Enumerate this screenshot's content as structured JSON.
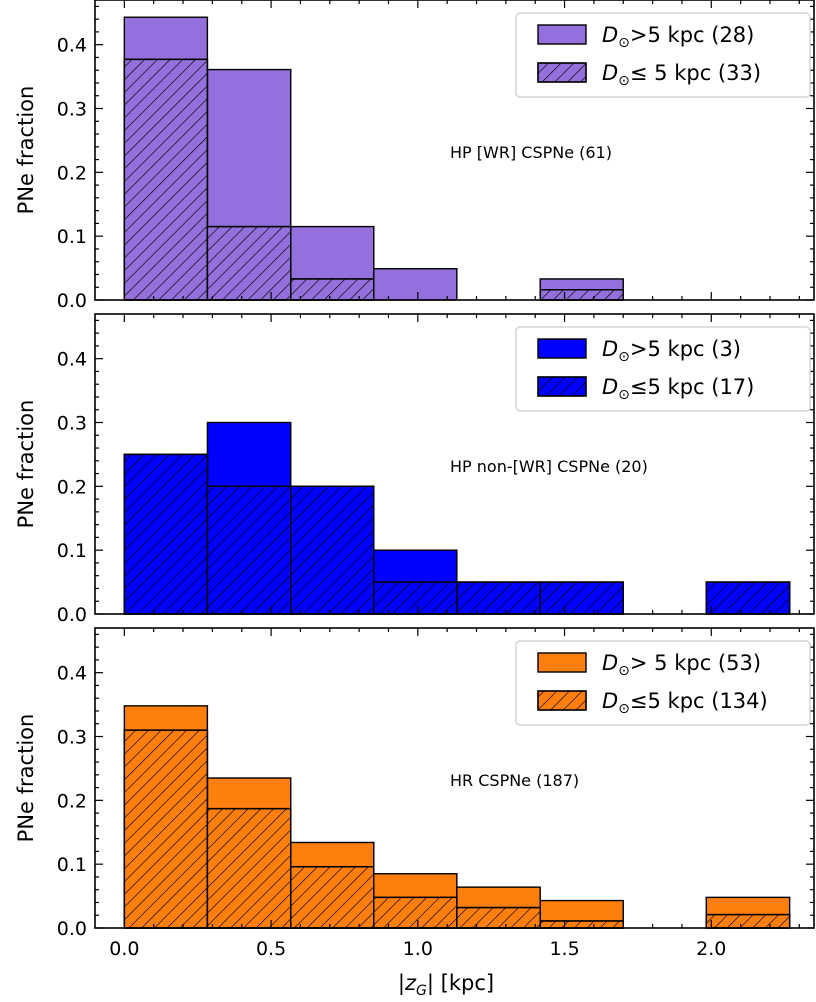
{
  "chart_data": [
    {
      "type": "bar",
      "panel": "top",
      "annotation": "HP [WR] CSPNe (61)",
      "ylabel": "PNe fraction",
      "xlabel": "",
      "ylim": [
        0,
        0.47
      ],
      "xlim": [
        -0.1,
        2.35
      ],
      "yticks": [
        "0.0",
        "0.1",
        "0.2",
        "0.3",
        "0.4"
      ],
      "bin_edges": [
        0.0,
        0.283,
        0.567,
        0.85,
        1.133,
        1.417,
        1.7,
        1.983,
        2.267
      ],
      "color": "#9370DB",
      "legend_position": "upper right",
      "series": [
        {
          "name": "D⊙>5 kpc (28)",
          "style": "solid",
          "values": [
            0.443,
            0.361,
            0.115,
            0.049,
            0.0,
            0.033,
            0.0,
            0.0
          ]
        },
        {
          "name": "D⊙≤ 5 kpc (33)",
          "style": "hatched",
          "values": [
            0.377,
            0.115,
            0.033,
            0.0,
            0.0,
            0.016,
            0.0,
            0.0
          ]
        }
      ]
    },
    {
      "type": "bar",
      "panel": "middle",
      "annotation": "HP non-[WR] CSPNe (20)",
      "ylabel": "PNe fraction",
      "xlabel": "",
      "ylim": [
        0,
        0.47
      ],
      "xlim": [
        -0.1,
        2.35
      ],
      "yticks": [
        "0.0",
        "0.1",
        "0.2",
        "0.3",
        "0.4"
      ],
      "bin_edges": [
        0.0,
        0.283,
        0.567,
        0.85,
        1.133,
        1.417,
        1.7,
        1.983,
        2.267
      ],
      "color": "#0000FF",
      "legend_position": "upper right",
      "series": [
        {
          "name": "D⊙>5 kpc (3)",
          "style": "solid",
          "values": [
            0.25,
            0.3,
            0.2,
            0.1,
            0.05,
            0.05,
            0.0,
            0.05
          ]
        },
        {
          "name": "D⊙≤5 kpc (17)",
          "style": "hatched",
          "values": [
            0.25,
            0.2,
            0.2,
            0.05,
            0.05,
            0.05,
            0.0,
            0.05
          ]
        }
      ]
    },
    {
      "type": "bar",
      "panel": "bottom",
      "annotation": "HR CSPNe (187)",
      "ylabel": "PNe fraction",
      "xlabel": "|zG| [kpc]",
      "ylim": [
        0,
        0.47
      ],
      "xlim": [
        -0.1,
        2.35
      ],
      "yticks": [
        "0.0",
        "0.1",
        "0.2",
        "0.3",
        "0.4"
      ],
      "xticks": [
        "0.0",
        "0.5",
        "1.0",
        "1.5",
        "2.0"
      ],
      "bin_edges": [
        0.0,
        0.283,
        0.567,
        0.85,
        1.133,
        1.417,
        1.7,
        1.983,
        2.267
      ],
      "color": "#FF7F0E",
      "legend_position": "upper right",
      "series": [
        {
          "name": "D⊙> 5 kpc (53)",
          "style": "solid",
          "values": [
            0.348,
            0.235,
            0.134,
            0.085,
            0.064,
            0.043,
            0.0,
            0.048
          ]
        },
        {
          "name": "D⊙≤5 kpc (134)",
          "style": "hatched",
          "values": [
            0.31,
            0.187,
            0.096,
            0.048,
            0.032,
            0.011,
            0.0,
            0.021
          ]
        }
      ]
    }
  ]
}
